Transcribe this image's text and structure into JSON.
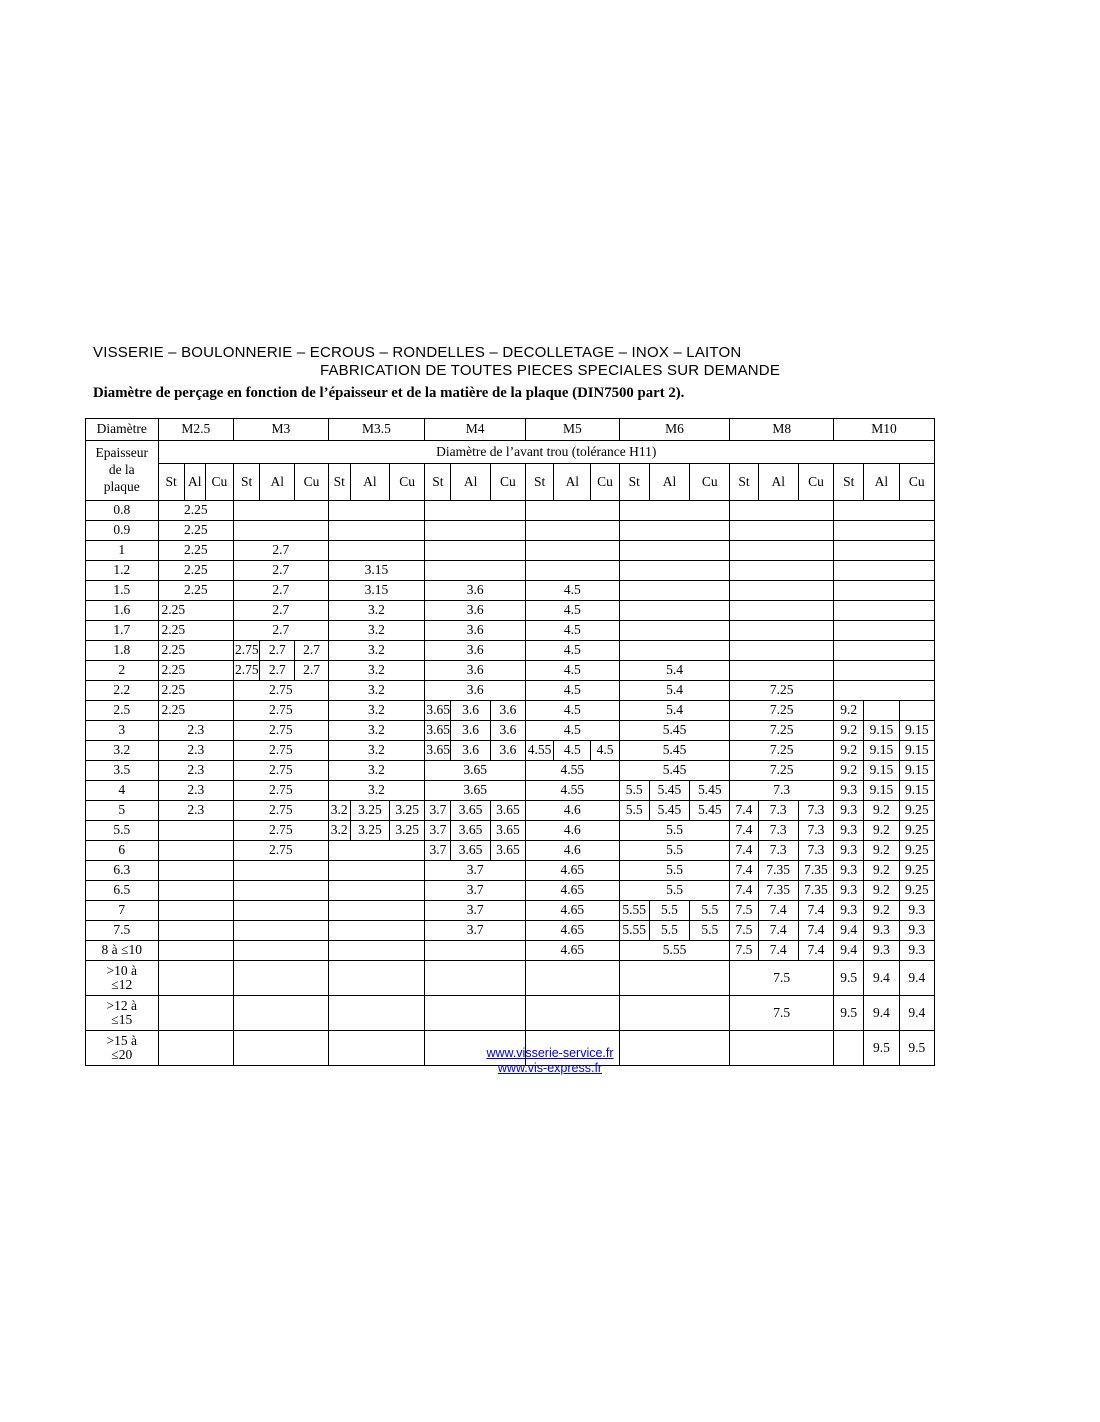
{
  "header": {
    "line1": "VISSERIE – BOULONNERIE – ECROUS – RONDELLES – DECOLLETAGE – INOX – LAITON",
    "line2": "FABRICATION DE TOUTES PIECES SPECIALES SUR DEMANDE",
    "subtitle": "Diamètre de perçage en fonction de l’épaisseur et de la matière de la plaque (DIN7500 part 2)."
  },
  "table": {
    "corner_label": "Diamètre",
    "row_header": "Epaisseur\nde la\nplaque",
    "span_header": "Diamètre de l’avant trou (tolérance H11)",
    "groups": [
      "M2.5",
      "M3",
      "M3.5",
      "M4",
      "M5",
      "M6",
      "M8",
      "M10"
    ],
    "materials": [
      "St",
      "Al",
      "Cu"
    ],
    "col_widths": {
      "label": 72,
      "groups": [
        [
          26,
          21,
          28
        ],
        [
          26,
          35,
          33
        ],
        [
          22,
          39,
          35
        ],
        [
          26,
          39,
          35
        ],
        [
          28,
          37,
          28
        ],
        [
          30,
          40,
          40
        ],
        [
          28,
          40,
          35
        ],
        [
          30,
          35,
          35
        ]
      ]
    },
    "rows": [
      {
        "label": "0.8",
        "cells": [
          "2.25",
          "",
          "",
          "",
          "",
          "",
          "",
          ""
        ]
      },
      {
        "label": "0.9",
        "cells": [
          "2.25",
          "",
          "",
          "",
          "",
          "",
          "",
          ""
        ]
      },
      {
        "label": "1",
        "cells": [
          "2.25",
          "2.7",
          "",
          "",
          "",
          "",
          "",
          ""
        ]
      },
      {
        "label": "1.2",
        "cells": [
          "2.25",
          "2.7",
          "3.15",
          "",
          "",
          "",
          "",
          ""
        ]
      },
      {
        "label": "1.5",
        "cells": [
          "2.25",
          "2.7",
          "3.15",
          "3.6",
          "4.5",
          "",
          "",
          ""
        ]
      },
      {
        "label": "1.6",
        "cells": [
          {
            "l": "2.25"
          },
          "2.7",
          "3.2",
          "3.6",
          "4.5",
          "",
          "",
          ""
        ]
      },
      {
        "label": "1.7",
        "cells": [
          {
            "l": "2.25"
          },
          "2.7",
          "3.2",
          "3.6",
          "4.5",
          "",
          "",
          ""
        ]
      },
      {
        "label": "1.8",
        "cells": [
          {
            "l": "2.25"
          },
          [
            "2.75",
            "2.7",
            "2.7"
          ],
          "3.2",
          "3.6",
          "4.5",
          "",
          "",
          ""
        ]
      },
      {
        "label": "2",
        "cells": [
          {
            "l": "2.25"
          },
          [
            "2.75",
            "2.7",
            "2.7"
          ],
          "3.2",
          "3.6",
          "4.5",
          "5.4",
          "",
          ""
        ]
      },
      {
        "label": "2.2",
        "cells": [
          {
            "l": "2.25"
          },
          "2.75",
          "3.2",
          "3.6",
          "4.5",
          "5.4",
          "7.25",
          ""
        ]
      },
      {
        "label": "2.5",
        "cells": [
          {
            "l": "2.25"
          },
          "2.75",
          "3.2",
          [
            "3.65",
            "3.6",
            "3.6"
          ],
          "4.5",
          "5.4",
          "7.25",
          [
            "9.2",
            "",
            ""
          ]
        ]
      },
      {
        "label": "3",
        "cells": [
          "2.3",
          "2.75",
          "3.2",
          [
            "3.65",
            "3.6",
            "3.6"
          ],
          "4.5",
          "5.45",
          "7.25",
          [
            "9.2",
            "9.15",
            "9.15"
          ]
        ]
      },
      {
        "label": "3.2",
        "cells": [
          "2.3",
          "2.75",
          "3.2",
          [
            "3.65",
            "3.6",
            "3.6"
          ],
          [
            "4.55",
            "4.5",
            "4.5"
          ],
          "5.45",
          "7.25",
          [
            "9.2",
            "9.15",
            "9.15"
          ]
        ]
      },
      {
        "label": "3.5",
        "cells": [
          "2.3",
          "2.75",
          "3.2",
          "3.65",
          "4.55",
          "5.45",
          "7.25",
          [
            "9.2",
            "9.15",
            "9.15"
          ]
        ]
      },
      {
        "label": "4",
        "cells": [
          "2.3",
          "2.75",
          "3.2",
          "3.65",
          "4.55",
          [
            "5.5",
            "5.45",
            "5.45"
          ],
          "7.3",
          [
            "9.3",
            "9.15",
            "9.15"
          ]
        ]
      },
      {
        "label": "5",
        "cells": [
          "2.3",
          "2.75",
          [
            "3.2",
            "3.25",
            "3.25"
          ],
          [
            "3.7",
            "3.65",
            "3.65"
          ],
          "4.6",
          [
            "5.5",
            "5.45",
            "5.45"
          ],
          [
            "7.4",
            "7.3",
            "7.3"
          ],
          [
            "9.3",
            "9.2",
            "9.25"
          ]
        ]
      },
      {
        "label": "5.5",
        "cells": [
          "",
          "2.75",
          [
            "3.2",
            "3.25",
            "3.25"
          ],
          [
            "3.7",
            "3.65",
            "3.65"
          ],
          "4.6",
          "5.5",
          [
            "7.4",
            "7.3",
            "7.3"
          ],
          [
            "9.3",
            "9.2",
            "9.25"
          ]
        ]
      },
      {
        "label": "6",
        "cells": [
          "",
          "2.75",
          "",
          [
            "3.7",
            "3.65",
            "3.65"
          ],
          "4.6",
          "5.5",
          [
            "7.4",
            "7.3",
            "7.3"
          ],
          [
            "9.3",
            "9.2",
            "9.25"
          ]
        ]
      },
      {
        "label": "6.3",
        "cells": [
          "",
          "",
          "",
          "3.7",
          "4.65",
          "5.5",
          [
            "7.4",
            "7.35",
            "7.35"
          ],
          [
            "9.3",
            "9.2",
            "9.25"
          ]
        ]
      },
      {
        "label": "6.5",
        "cells": [
          "",
          "",
          "",
          "3.7",
          "4.65",
          "5.5",
          [
            "7.4",
            "7.35",
            "7.35"
          ],
          [
            "9.3",
            "9.2",
            "9.25"
          ]
        ]
      },
      {
        "label": "7",
        "cells": [
          "",
          "",
          "",
          "3.7",
          "4.65",
          [
            "5.55",
            "5.5",
            "5.5"
          ],
          [
            "7.5",
            "7.4",
            "7.4"
          ],
          [
            "9.3",
            "9.2",
            "9.3"
          ]
        ]
      },
      {
        "label": "7.5",
        "cells": [
          "",
          "",
          "",
          "3.7",
          "4.65",
          [
            "5.55",
            "5.5",
            "5.5"
          ],
          [
            "7.5",
            "7.4",
            "7.4"
          ],
          [
            "9.4",
            "9.3",
            "9.3"
          ]
        ]
      },
      {
        "label": "8 à ≤10",
        "cells": [
          "",
          "",
          "",
          "",
          "4.65",
          "5.55",
          [
            "7.5",
            "7.4",
            "7.4"
          ],
          [
            "9.4",
            "9.3",
            "9.3"
          ]
        ]
      },
      {
        "label": ">10 à\n≤12",
        "cells": [
          "",
          "",
          "",
          "",
          "",
          "",
          "7.5",
          [
            "9.5",
            "9.4",
            "9.4"
          ]
        ]
      },
      {
        "label": ">12 à\n≤15",
        "cells": [
          "",
          "",
          "",
          "",
          "",
          "",
          "7.5",
          [
            "9.5",
            "9.4",
            "9.4"
          ]
        ]
      },
      {
        "label": ">15 à\n≤20",
        "cells": [
          "",
          "",
          "",
          "",
          "",
          "",
          "",
          [
            "",
            "9.5",
            "9.5"
          ]
        ]
      }
    ]
  },
  "footer": {
    "links": [
      "www.visserie-service.fr",
      "www.vis-express.fr"
    ],
    "link_color": "#0000EE"
  }
}
